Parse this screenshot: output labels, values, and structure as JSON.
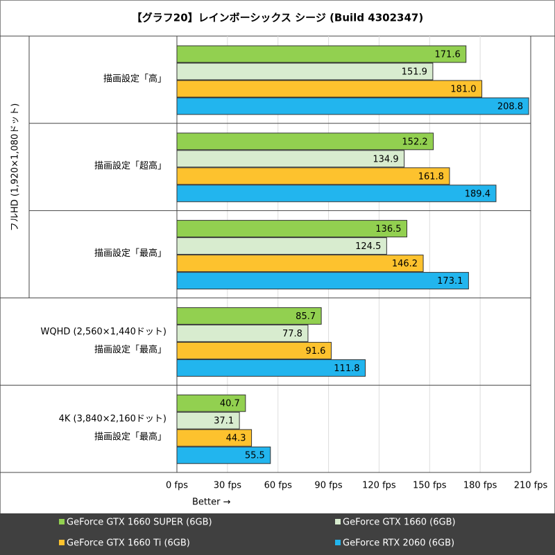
{
  "chart_data": {
    "type": "bar",
    "orientation": "horizontal",
    "title": "【グラフ20】レインボーシックス シージ (Build 4302347)",
    "super_category": "フルHD (1,920×1,080ドット)",
    "categories": [
      [
        "描画設定「高」"
      ],
      [
        "描画設定「超高」"
      ],
      [
        "描画設定「最高」"
      ],
      [
        "WQHD (2,560×1,440ドット)",
        "描画設定「最高」"
      ],
      [
        "4K (3,840×2,160ドット)",
        "描画設定「最高」"
      ]
    ],
    "series": [
      {
        "name": "GeForce GTX 1660 SUPER (6GB)",
        "color": "#92d050",
        "values": [
          171.6,
          152.2,
          136.5,
          85.7,
          40.7
        ],
        "value_labels": [
          "171.6",
          "152.2",
          "136.5",
          "85.7",
          "40.7"
        ]
      },
      {
        "name": "GeForce GTX 1660 (6GB)",
        "color": "#d8eccf",
        "values": [
          151.9,
          134.9,
          124.5,
          77.8,
          37.1
        ],
        "value_labels": [
          "151.9",
          "134.9",
          "124.5",
          "77.8",
          "37.1"
        ]
      },
      {
        "name": "GeForce GTX 1660 Ti (6GB)",
        "color": "#fdc22e",
        "values": [
          181.0,
          161.8,
          146.2,
          91.6,
          44.3
        ],
        "value_labels": [
          "181.0",
          "161.8",
          "146.2",
          "91.6",
          "44.3"
        ]
      },
      {
        "name": "GeForce RTX 2060 (6GB)",
        "color": "#22b5ee",
        "values": [
          208.8,
          189.4,
          173.1,
          111.8,
          55.5
        ],
        "value_labels": [
          "208.8",
          "189.4",
          "173.1",
          "111.8",
          "55.5"
        ]
      }
    ],
    "xlim": [
      0,
      210
    ],
    "xticks": [
      {
        "value": 0,
        "label": "0 fps"
      },
      {
        "value": 30,
        "label": "30 fps"
      },
      {
        "value": 60,
        "label": "60 fps"
      },
      {
        "value": 90,
        "label": "90 fps"
      },
      {
        "value": 120,
        "label": "120 fps"
      },
      {
        "value": 150,
        "label": "150 fps"
      },
      {
        "value": 180,
        "label": "180 fps"
      },
      {
        "value": 210,
        "label": "210 fps"
      }
    ],
    "xlabel": "Better →",
    "grid": true
  }
}
